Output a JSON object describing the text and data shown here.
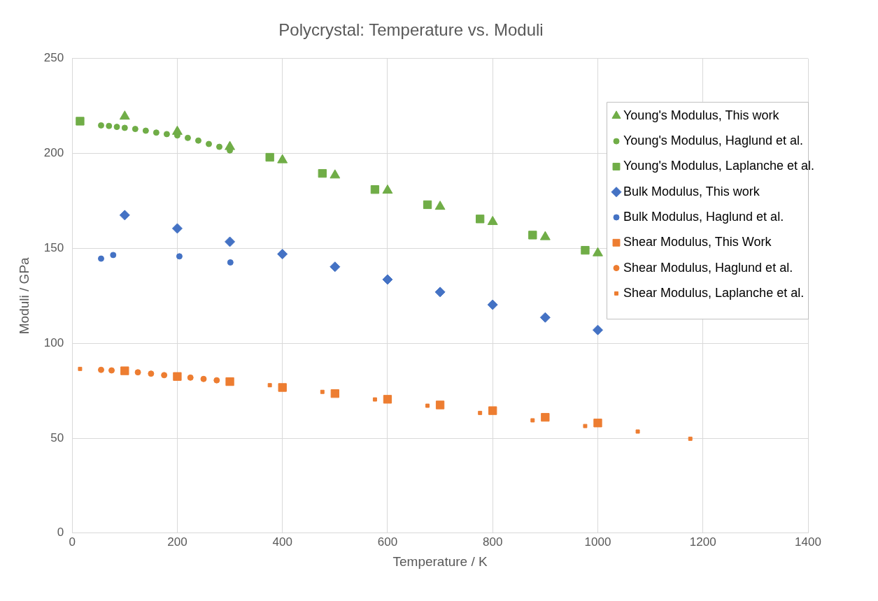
{
  "chart_data": {
    "type": "scatter",
    "title": "Polycrystal: Temperature vs. Moduli",
    "xlabel": "Temperature / K",
    "ylabel": "Moduli / GPa",
    "xlim": [
      0,
      1400
    ],
    "xticks": [
      0,
      200,
      400,
      600,
      800,
      1000,
      1200,
      1400
    ],
    "ylim": [
      0,
      250
    ],
    "yticks": [
      0,
      50,
      100,
      150,
      200,
      250
    ],
    "grid": true,
    "legend": "top right",
    "series": [
      {
        "name": "Young's Modulus, This work",
        "color": "#70ad47",
        "marker": "triangle",
        "x": [
          100,
          200,
          300,
          400,
          500,
          600,
          700,
          800,
          900,
          1000
        ],
        "values": [
          219.5,
          211.5,
          203.5,
          196.5,
          188.5,
          180.5,
          172,
          164,
          156,
          147.5
        ]
      },
      {
        "name": "Young's Modulus, Haglund et al.",
        "color": "#70ad47",
        "marker": "circle",
        "x": [
          55,
          70,
          85,
          100,
          120,
          140,
          160,
          180,
          200,
          220,
          240,
          260,
          280,
          300
        ],
        "values": [
          214.8,
          214.5,
          214,
          213.5,
          212.9,
          212,
          211,
          210.2,
          209.5,
          208.2,
          206.8,
          205,
          203.5,
          201.6
        ]
      },
      {
        "name": "Young's Modulus, Laplanche et al.",
        "color": "#70ad47",
        "marker": "square",
        "x": [
          15,
          376,
          476,
          576,
          676,
          776,
          876,
          976
        ],
        "values": [
          217,
          198,
          189.5,
          181,
          173,
          165.5,
          157,
          149
        ]
      },
      {
        "name": "Bulk Modulus, This work",
        "color": "#4472c4",
        "marker": "diamond",
        "x": [
          100,
          200,
          300,
          400,
          500,
          600,
          700,
          800,
          900,
          1000
        ],
        "values": [
          167.5,
          160.5,
          153.5,
          147,
          140.3,
          133.6,
          127,
          120.3,
          113.6,
          107
        ]
      },
      {
        "name": "Bulk Modulus, Haglund et al.",
        "color": "#4472c4",
        "marker": "circle",
        "x": [
          55,
          78,
          204,
          301
        ],
        "values": [
          144.6,
          146.5,
          145.8,
          142.6
        ]
      },
      {
        "name": "Shear Modulus, This Work",
        "color": "#ed7d31",
        "marker": "square",
        "x": [
          100,
          200,
          300,
          400,
          500,
          600,
          700,
          800,
          900,
          1000
        ],
        "values": [
          85.5,
          82.5,
          79.8,
          76.7,
          73.5,
          70.5,
          67.5,
          64.5,
          61,
          58
        ]
      },
      {
        "name": "Shear Modulus, Haglund et al.",
        "color": "#ed7d31",
        "marker": "circle",
        "x": [
          55,
          75,
          125,
          150,
          175,
          225,
          250,
          275
        ],
        "values": [
          86,
          85.7,
          84.7,
          84,
          83.2,
          81.9,
          81.2,
          80.5
        ]
      },
      {
        "name": "Shear Modulus, Laplanche et al.",
        "color": "#ed7d31",
        "marker": "square",
        "x": [
          15,
          376,
          476,
          576,
          676,
          776,
          876,
          976,
          1076,
          1176
        ],
        "values": [
          86.5,
          77.9,
          74.4,
          70.4,
          67.1,
          63.3,
          59.4,
          56.4,
          53.5,
          49.7
        ]
      }
    ]
  }
}
